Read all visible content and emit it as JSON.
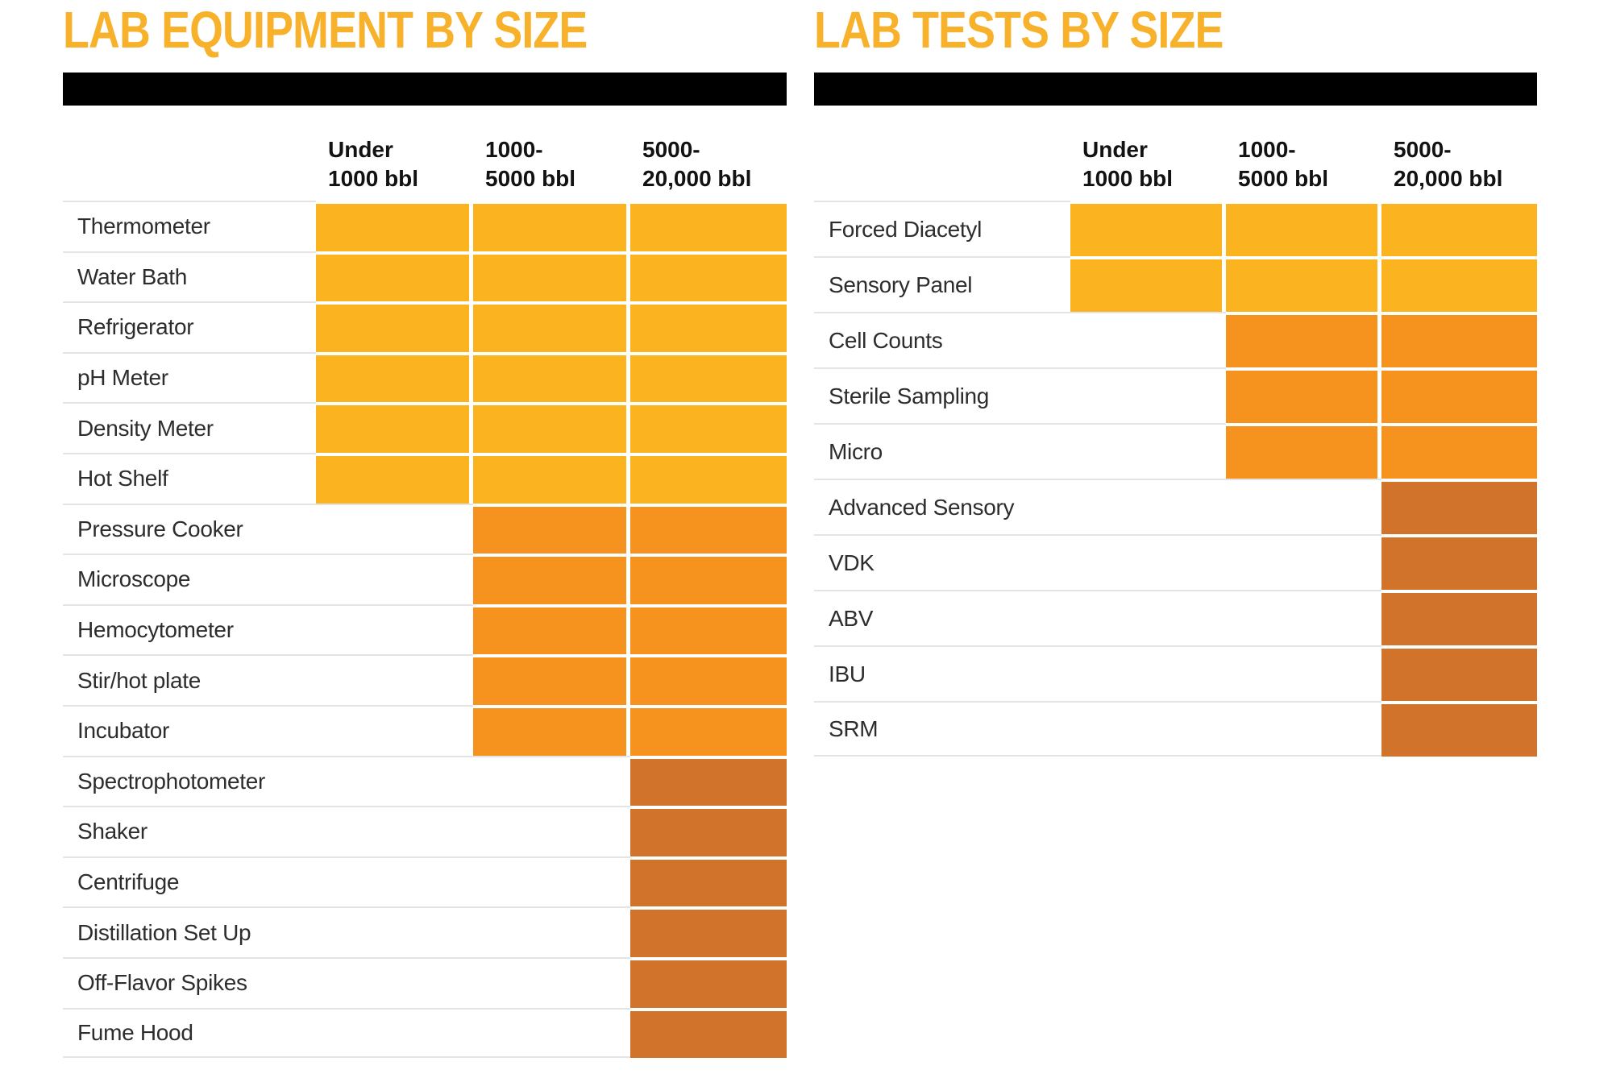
{
  "page": {
    "background": "#ffffff"
  },
  "colors": {
    "yellow": "#FBB41F",
    "orange": "#F6931E",
    "dark": "#D1732B",
    "title_yellow": "#F7B12A",
    "bar_black": "#000000",
    "grid_line": "#E4E4E4",
    "label_text": "#2D2D2D",
    "header_text": "#121212"
  },
  "chart_data": [
    {
      "id": "equipment",
      "type": "heatmap",
      "title": "LAB EQUIPMENT BY SIZE",
      "columns": [
        "Under\n1000 bbl",
        "1000-\n5000 bbl",
        "5000-\n20,000 bbl"
      ],
      "value_meaning": "1 = equipment used at this brewery size, 0 = not used; row tier sets fill color",
      "rows": [
        {
          "label": "Thermometer",
          "tier": "yellow",
          "cells": [
            1,
            1,
            1
          ]
        },
        {
          "label": "Water Bath",
          "tier": "yellow",
          "cells": [
            1,
            1,
            1
          ]
        },
        {
          "label": "Refrigerator",
          "tier": "yellow",
          "cells": [
            1,
            1,
            1
          ]
        },
        {
          "label": "pH Meter",
          "tier": "yellow",
          "cells": [
            1,
            1,
            1
          ]
        },
        {
          "label": "Density Meter",
          "tier": "yellow",
          "cells": [
            1,
            1,
            1
          ]
        },
        {
          "label": "Hot Shelf",
          "tier": "yellow",
          "cells": [
            1,
            1,
            1
          ]
        },
        {
          "label": "Pressure Cooker",
          "tier": "orange",
          "cells": [
            0,
            1,
            1
          ]
        },
        {
          "label": "Microscope",
          "tier": "orange",
          "cells": [
            0,
            1,
            1
          ]
        },
        {
          "label": "Hemocytometer",
          "tier": "orange",
          "cells": [
            0,
            1,
            1
          ]
        },
        {
          "label": "Stir/hot plate",
          "tier": "orange",
          "cells": [
            0,
            1,
            1
          ]
        },
        {
          "label": "Incubator",
          "tier": "orange",
          "cells": [
            0,
            1,
            1
          ]
        },
        {
          "label": "Spectrophotometer",
          "tier": "dark",
          "cells": [
            0,
            0,
            1
          ]
        },
        {
          "label": "Shaker",
          "tier": "dark",
          "cells": [
            0,
            0,
            1
          ]
        },
        {
          "label": "Centrifuge",
          "tier": "dark",
          "cells": [
            0,
            0,
            1
          ]
        },
        {
          "label": "Distillation Set Up",
          "tier": "dark",
          "cells": [
            0,
            0,
            1
          ]
        },
        {
          "label": "Off-Flavor Spikes",
          "tier": "dark",
          "cells": [
            0,
            0,
            1
          ]
        },
        {
          "label": "Fume Hood",
          "tier": "dark",
          "cells": [
            0,
            0,
            1
          ]
        }
      ]
    },
    {
      "id": "tests",
      "type": "heatmap",
      "title": "LAB TESTS BY SIZE",
      "columns": [
        "Under\n1000 bbl",
        "1000-\n5000 bbl",
        "5000-\n20,000 bbl"
      ],
      "value_meaning": "1 = test performed at this brewery size, 0 = not performed; row tier sets fill color",
      "rows": [
        {
          "label": "Forced Diacetyl",
          "tier": "yellow",
          "cells": [
            1,
            1,
            1
          ]
        },
        {
          "label": "Sensory Panel",
          "tier": "yellow",
          "cells": [
            1,
            1,
            1
          ]
        },
        {
          "label": "Cell Counts",
          "tier": "orange",
          "cells": [
            0,
            1,
            1
          ]
        },
        {
          "label": "Sterile Sampling",
          "tier": "orange",
          "cells": [
            0,
            1,
            1
          ]
        },
        {
          "label": "Micro",
          "tier": "orange",
          "cells": [
            0,
            1,
            1
          ]
        },
        {
          "label": "Advanced Sensory",
          "tier": "dark",
          "cells": [
            0,
            0,
            1
          ]
        },
        {
          "label": "VDK",
          "tier": "dark",
          "cells": [
            0,
            0,
            1
          ]
        },
        {
          "label": "ABV",
          "tier": "dark",
          "cells": [
            0,
            0,
            1
          ]
        },
        {
          "label": "IBU",
          "tier": "dark",
          "cells": [
            0,
            0,
            1
          ]
        },
        {
          "label": "SRM",
          "tier": "dark",
          "cells": [
            0,
            0,
            1
          ]
        }
      ]
    }
  ]
}
